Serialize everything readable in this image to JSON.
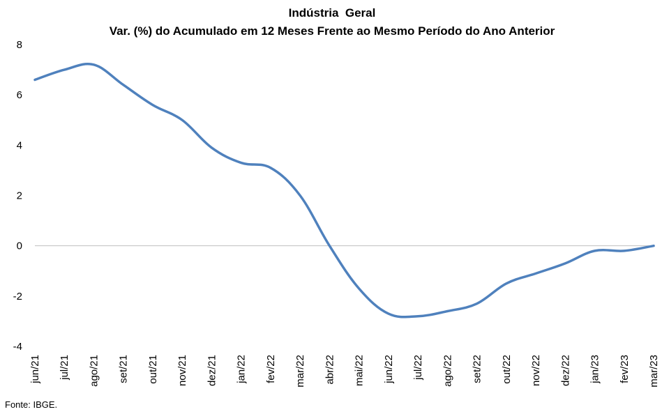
{
  "chart_data": {
    "type": "line",
    "title": "Indústria  Geral",
    "subtitle": "Var. (%) do Acumulado em 12 Meses Frente ao Mesmo Período do Ano Anterior",
    "categories": [
      "jun/21",
      "jul/21",
      "ago/21",
      "set/21",
      "out/21",
      "nov/21",
      "dez/21",
      "jan/22",
      "fev/22",
      "mar/22",
      "abr/22",
      "mai/22",
      "jun/22",
      "jul/22",
      "ago/22",
      "set/22",
      "out/22",
      "nov/22",
      "dez/22",
      "jan/23",
      "fev/23",
      "mar/23"
    ],
    "series": [
      {
        "values": [
          6.6,
          7.0,
          7.2,
          6.4,
          5.6,
          5.0,
          3.9,
          3.3,
          3.1,
          2.0,
          0.0,
          -1.7,
          -2.7,
          -2.8,
          -2.6,
          -2.3,
          -1.5,
          -1.1,
          -0.7,
          -0.2,
          -0.2,
          0.0
        ],
        "color": "#4F81BD"
      }
    ],
    "ylim": [
      -4,
      8
    ],
    "yticks": [
      -4,
      -2,
      0,
      2,
      4,
      6,
      8
    ],
    "grid": false,
    "zero_line": true,
    "legend": "none"
  },
  "footer": {
    "source": "Fonte: IBGE."
  }
}
